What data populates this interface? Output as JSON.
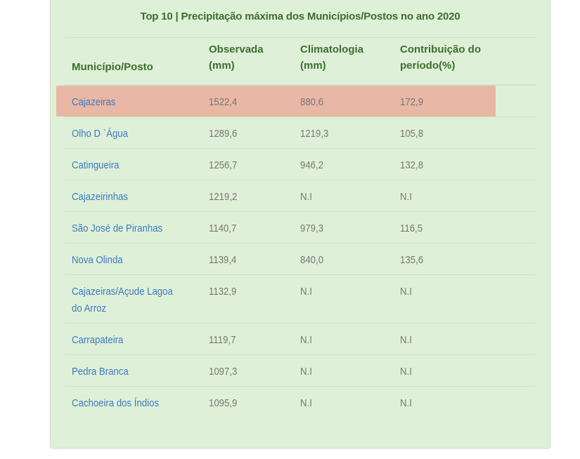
{
  "title": "Top 10 | Precipitação máxima dos Municípios/Postos no ano 2020",
  "columns": [
    "Município/Posto",
    "Observada (mm)",
    "Climatologia (mm)",
    "Contribuição do período(%)"
  ],
  "rows": [
    {
      "name": "Cajazeiras",
      "observada": "1522,4",
      "climatologia": "880,6",
      "contribuicao": "172,9"
    },
    {
      "name": "Olho D `Água",
      "observada": "1289,6",
      "climatologia": "1219,3",
      "contribuicao": "105,8"
    },
    {
      "name": "Catingueira",
      "observada": "1256,7",
      "climatologia": "946,2",
      "contribuicao": "132,8"
    },
    {
      "name": "Cajazeirinhas",
      "observada": "1219,2",
      "climatologia": "N.I",
      "contribuicao": "N.I"
    },
    {
      "name": "São José de Piranhas",
      "observada": "1140,7",
      "climatologia": "979,3",
      "contribuicao": "116,5"
    },
    {
      "name": "Nova Olinda",
      "observada": "1139,4",
      "climatologia": "840,0",
      "contribuicao": "135,6"
    },
    {
      "name": "Cajazeiras/Açude Lagoa do Arroz",
      "observada": "1132,9",
      "climatologia": "N.I",
      "contribuicao": "N.I"
    },
    {
      "name": "Carrapateira",
      "observada": "1119,7",
      "climatologia": "N.I",
      "contribuicao": "N.I"
    },
    {
      "name": "Pedra Branca",
      "observada": "1097,3",
      "climatologia": "N.I",
      "contribuicao": "N.I"
    },
    {
      "name": "Cachoeira dos Índios",
      "observada": "1095,9",
      "climatologia": "N.I",
      "contribuicao": "N.I"
    }
  ],
  "colors": {
    "panel_bg": "#dff0d8",
    "heading": "#3c6e2e",
    "link": "#3a7bbd",
    "highlight": "#e9b7a6"
  }
}
